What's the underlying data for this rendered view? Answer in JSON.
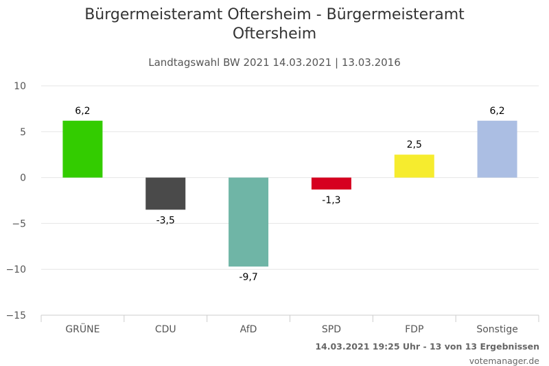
{
  "header": {
    "title_line1": "Bürgermeisteramt Oftersheim - Bürgermeisteramt",
    "title_line2": "Oftersheim",
    "subtitle": "Landtagswahl BW 2021 14.03.2021 | 13.03.2016"
  },
  "footer": {
    "status": "14.03.2021 19:25 Uhr - 13 von 13 Ergebnissen",
    "credit": "votemanager.de"
  },
  "chart_data": {
    "type": "bar",
    "categories": [
      "GRÜNE",
      "CDU",
      "AfD",
      "SPD",
      "FDP",
      "Sonstige"
    ],
    "values": [
      6.2,
      -3.5,
      -9.7,
      -1.3,
      2.5,
      6.2
    ],
    "value_labels": [
      "6,2",
      "-3,5",
      "-9,7",
      "-1,3",
      "2,5",
      "6,2"
    ],
    "colors": [
      "#33cc00",
      "#4a4a4a",
      "#6fb5a6",
      "#d60020",
      "#f6ec2e",
      "#abbee3"
    ],
    "ylim": [
      -15,
      10
    ],
    "yticks": [
      10,
      5,
      0,
      -5,
      -10,
      -15
    ],
    "ytick_labels": [
      "10",
      "5",
      "0",
      "−5",
      "−10",
      "−15"
    ],
    "grid": true,
    "legend": "none",
    "xlabel": "",
    "ylabel": ""
  }
}
